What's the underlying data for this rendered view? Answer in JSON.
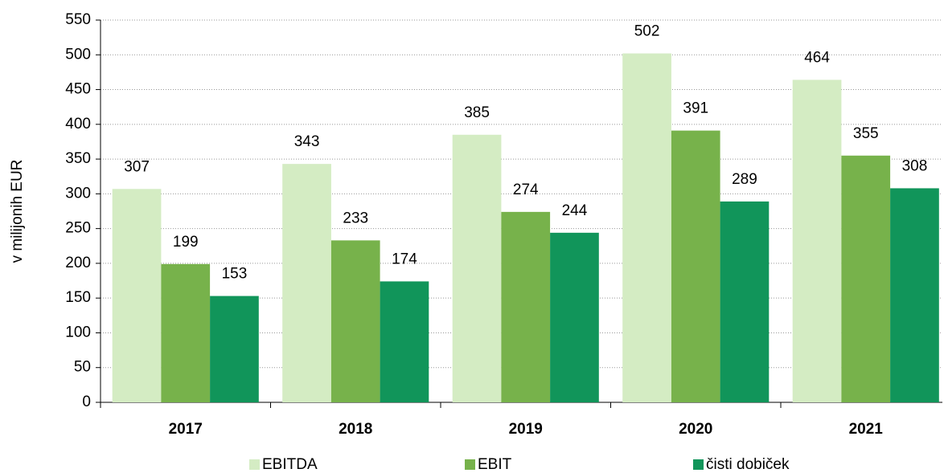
{
  "chart_data": {
    "type": "bar",
    "ylabel": "v milijonih EUR",
    "categories": [
      "2017",
      "2018",
      "2019",
      "2020",
      "2021"
    ],
    "series": [
      {
        "name": "EBITDA",
        "color": "#d4ecc3",
        "values": [
          307,
          343,
          385,
          502,
          464
        ]
      },
      {
        "name": "EBIT",
        "color": "#77b24b",
        "values": [
          199,
          233,
          274,
          391,
          355
        ]
      },
      {
        "name": "čisti dobiček",
        "color": "#11955a",
        "values": [
          153,
          174,
          244,
          289,
          308
        ]
      }
    ],
    "ylim": [
      0,
      550
    ],
    "yticks": [
      0,
      50,
      100,
      150,
      200,
      250,
      300,
      350,
      400,
      450,
      500,
      550
    ],
    "grid": true,
    "legend": "bottom"
  }
}
